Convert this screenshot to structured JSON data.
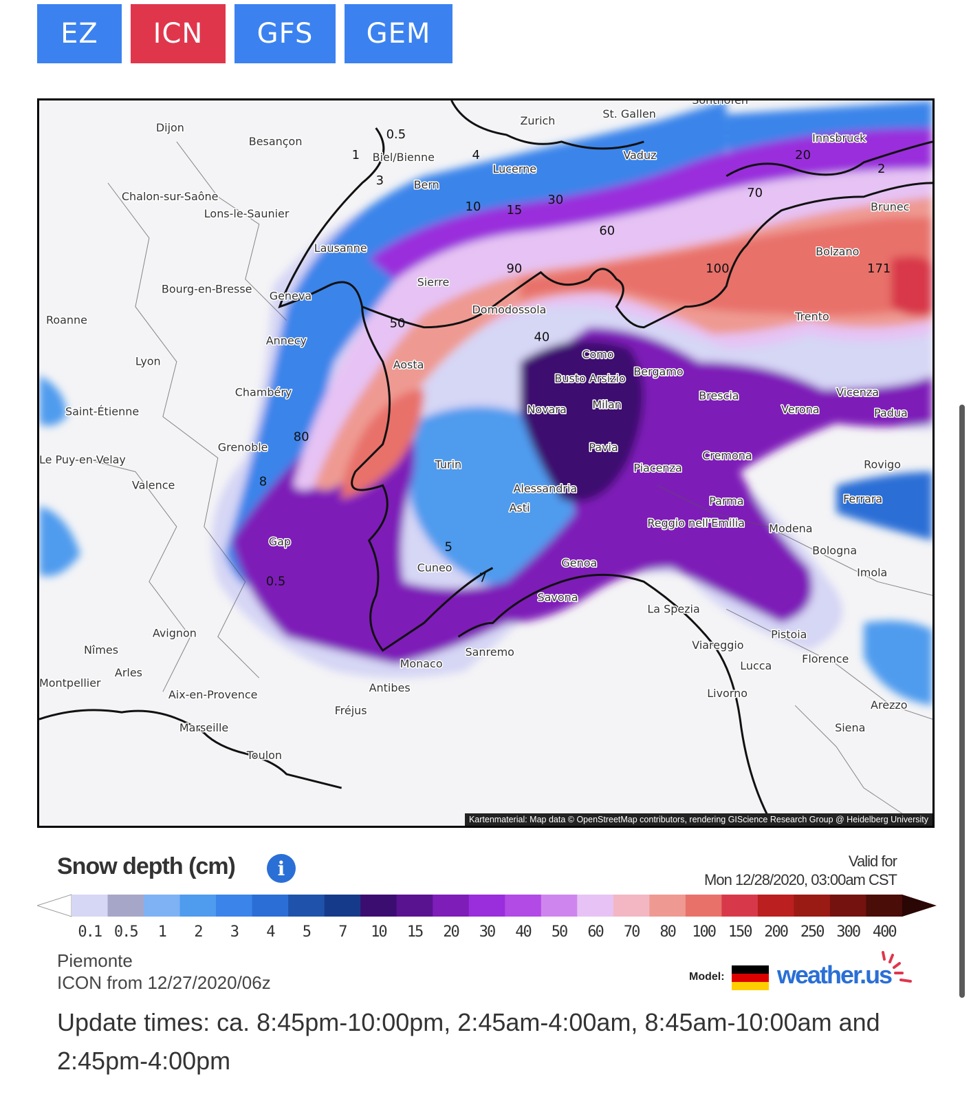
{
  "tabs": [
    {
      "label": "EZ",
      "color": "#3b82f0",
      "active": false
    },
    {
      "label": "ICN",
      "color": "#e0364c",
      "active": true
    },
    {
      "label": "GFS",
      "color": "#3b82f0",
      "active": false
    },
    {
      "label": "GEM",
      "color": "#3b82f0",
      "active": false
    }
  ],
  "map": {
    "attribution": "Kartenmaterial: Map data © OpenStreetMap contributors, rendering GIScience Research Group @ Heidelberg University",
    "cities": [
      "Dijon",
      "Besançon",
      "Biel/Bienne",
      "Zurich",
      "St. Gallen",
      "Sonthofen",
      "Innsbruck",
      "Vaduz",
      "Lucerne",
      "Bern",
      "Chalon-sur-Saône",
      "Lons-le-Saunier",
      "Lausanne",
      "Brunec",
      "Bolzano",
      "Sierre",
      "Domodossola",
      "Geneva",
      "Bourg-en-Bresse",
      "Roanne",
      "Annecy",
      "Lyon",
      "Aosta",
      "Como",
      "Busto Arsizio",
      "Bergamo",
      "Brescia",
      "Trento",
      "Vicenza",
      "Verona",
      "Padua",
      "Chambéry",
      "Saint-Étienne",
      "Novara",
      "Milan",
      "Grenoble",
      "Pavia",
      "Cremona",
      "Le Puy-en-Velay",
      "Valence",
      "Turin",
      "Piacenza",
      "Rovigo",
      "Alessandria",
      "Asti",
      "Parma",
      "Ferrara",
      "Reggio nell'Emilia",
      "Modena",
      "Gap",
      "Bologna",
      "Cuneo",
      "Genoa",
      "Imola",
      "Savona",
      "La Spezia",
      "Avignon",
      "Pistoia",
      "Nîmes",
      "Arles",
      "Monaco",
      "Sanremo",
      "Viareggio",
      "Lucca",
      "Florence",
      "Montpellier",
      "Antibes",
      "Aix-en-Provence",
      "Fréjus",
      "Livorno",
      "Arezzo",
      "Marseille",
      "Siena",
      "Toulon"
    ],
    "contour_labels": [
      "0.5",
      "1",
      "4",
      "30",
      "60",
      "70",
      "100",
      "40",
      "20",
      "50",
      "90",
      "80",
      "10",
      "15",
      "3",
      "2",
      "5",
      "8",
      "171",
      "0.5",
      "7"
    ]
  },
  "legend": {
    "title": "Snow depth (cm)",
    "info_icon": "info-icon",
    "valid_label": "Valid for",
    "valid_time": "Mon 12/28/2020, 03:00am CST",
    "ticks": [
      "0.1",
      "0.5",
      "1",
      "2",
      "3",
      "4",
      "5",
      "7",
      "10",
      "15",
      "20",
      "30",
      "40",
      "50",
      "60",
      "70",
      "80",
      "100",
      "150",
      "200",
      "250",
      "300",
      "400"
    ],
    "colors": [
      "#d6d6f5",
      "#a6a6c8",
      "#7eb2f4",
      "#4f9bee",
      "#3a84ea",
      "#2b6ed6",
      "#1f53ab",
      "#163a8a",
      "#3c0d70",
      "#5a1390",
      "#7e1db8",
      "#9a2ddc",
      "#b24ae6",
      "#cf85ee",
      "#e6c3f4",
      "#f2b7c2",
      "#ee9a92",
      "#e8716a",
      "#d8394a",
      "#bb1f1f",
      "#9a1a14",
      "#741210",
      "#4a0d08"
    ]
  },
  "footer": {
    "region": "Piemonte",
    "run": "ICON from 12/27/2020/06z",
    "model_label": "Model:",
    "brand": "weather.us",
    "update_times": "Update times: ca. 8:45pm-10:00pm, 2:45am-4:00am, 8:45am-10:00am and 2:45pm-4:00pm"
  }
}
